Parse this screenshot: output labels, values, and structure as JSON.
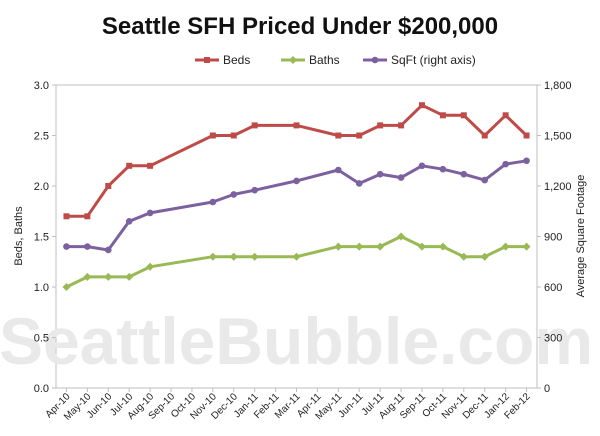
{
  "chart_data": {
    "type": "line",
    "title": "Seattle SFH Priced Under $200,000",
    "watermark": "SeattleBubble.com",
    "ylabel": "Beds, Baths",
    "y2label": "Average Square Footage",
    "ylim": [
      0,
      3.0
    ],
    "y2lim": [
      0,
      1800
    ],
    "yticks": [
      "0.0",
      "0.5",
      "1.0",
      "1.5",
      "2.0",
      "2.5",
      "3.0"
    ],
    "y2ticks": [
      "0",
      "300",
      "600",
      "900",
      "1,200",
      "1,500",
      "1,800"
    ],
    "legend_position": "top",
    "grid": false,
    "categories": [
      "Apr-10",
      "May-10",
      "Jun-10",
      "Jul-10",
      "Aug-10",
      "Sep-10",
      "Oct-10",
      "Nov-10",
      "Dec-10",
      "Jan-11",
      "Feb-11",
      "Mar-11",
      "Apr-11",
      "May-11",
      "Jun-11",
      "Jul-11",
      "Aug-11",
      "Sep-11",
      "Oct-11",
      "Nov-11",
      "Dec-11",
      "Jan-12",
      "Feb-12"
    ],
    "series": [
      {
        "name": "Beds",
        "axis": "left",
        "color": "#be4b48",
        "marker": "square",
        "values": [
          1.7,
          1.7,
          2.0,
          2.2,
          2.2,
          null,
          null,
          2.5,
          2.5,
          2.6,
          null,
          2.6,
          null,
          2.5,
          2.5,
          2.6,
          2.6,
          2.8,
          2.7,
          2.7,
          2.5,
          2.7,
          2.5
        ]
      },
      {
        "name": "Baths",
        "axis": "left",
        "color": "#98b954",
        "marker": "diamond",
        "values": [
          1.0,
          1.1,
          1.1,
          1.1,
          1.2,
          null,
          null,
          1.3,
          1.3,
          1.3,
          null,
          1.3,
          null,
          1.4,
          1.4,
          1.4,
          1.5,
          1.4,
          1.4,
          1.3,
          1.3,
          1.4,
          1.4
        ]
      },
      {
        "name": "SqFt (right axis)",
        "axis": "right",
        "color": "#7d60a0",
        "marker": "circle",
        "values": [
          840,
          840,
          820,
          990,
          1040,
          null,
          null,
          1105,
          1150,
          1175,
          null,
          1230,
          null,
          1295,
          1215,
          1270,
          1250,
          1320,
          1300,
          1270,
          1235,
          1330,
          1350
        ]
      }
    ]
  }
}
